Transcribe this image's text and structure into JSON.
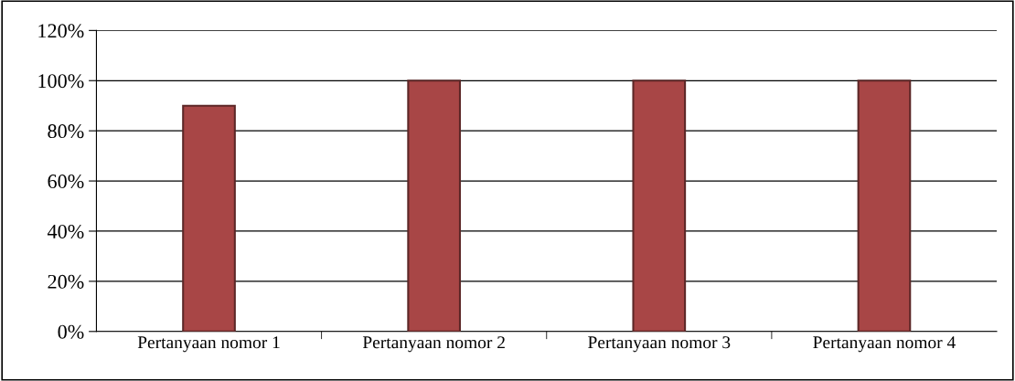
{
  "chart_data": {
    "type": "bar",
    "categories": [
      "Pertanyaan nomor 1",
      "Pertanyaan nomor 2",
      "Pertanyaan nomor 3",
      "Pertanyaan nomor 4"
    ],
    "values": [
      90,
      100,
      100,
      100
    ],
    "color": "#a84646",
    "ylim": [
      0,
      120
    ],
    "yticks": [
      {
        "value": 0,
        "label": "0%"
      },
      {
        "value": 20,
        "label": "20%"
      },
      {
        "value": 40,
        "label": "40%"
      },
      {
        "value": 60,
        "label": "60%"
      },
      {
        "value": 80,
        "label": "80%"
      },
      {
        "value": 100,
        "label": "100%"
      },
      {
        "value": 120,
        "label": "120%"
      }
    ],
    "grid": "y"
  }
}
